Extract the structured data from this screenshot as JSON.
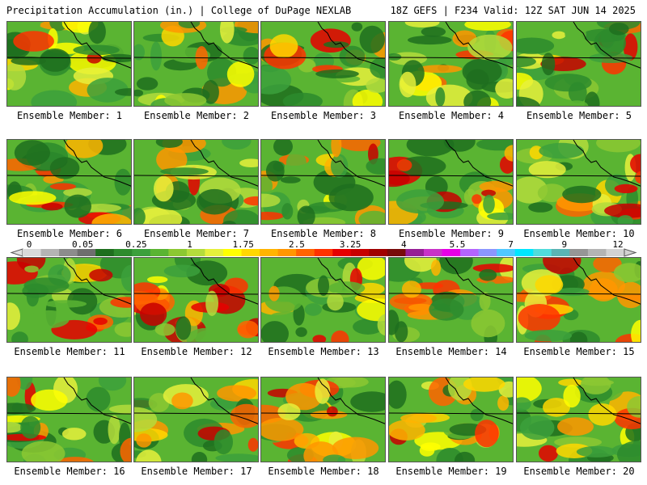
{
  "header": {
    "left": "Precipitation Accumulation (in.) | College of DuPage NEXLAB",
    "right": "18Z GEFS | F234 Valid: 12Z SAT JUN 14 2025"
  },
  "member_prefix": "Ensemble Member: ",
  "members": [
    1,
    2,
    3,
    4,
    5,
    6,
    7,
    8,
    9,
    10,
    11,
    12,
    13,
    14,
    15,
    16,
    17,
    18,
    19,
    20
  ],
  "colorbar": {
    "tick_labels": [
      "0",
      "0.05",
      "0.25",
      "1",
      "1.75",
      "2.5",
      "3.25",
      "4",
      "5.5",
      "7",
      "9",
      "12"
    ],
    "colors": [
      "#d9d9d9",
      "#b4b4b4",
      "#8c8c8c",
      "#6e6e6e",
      "#1e6e1e",
      "#2d8b2d",
      "#3ca03c",
      "#5ab432",
      "#8cc832",
      "#b4dc3c",
      "#e6f03c",
      "#ffff00",
      "#ffd700",
      "#ffb400",
      "#ff9600",
      "#ff6400",
      "#ff3200",
      "#e60000",
      "#c80000",
      "#a00000",
      "#780a0a",
      "#961e96",
      "#c832c8",
      "#e600e6",
      "#b464ff",
      "#8c96ff",
      "#50c8ff",
      "#00e6ff",
      "#50dcdc",
      "#5ab4b4",
      "#969696",
      "#b4b4b4",
      "#d2d2d2"
    ]
  }
}
